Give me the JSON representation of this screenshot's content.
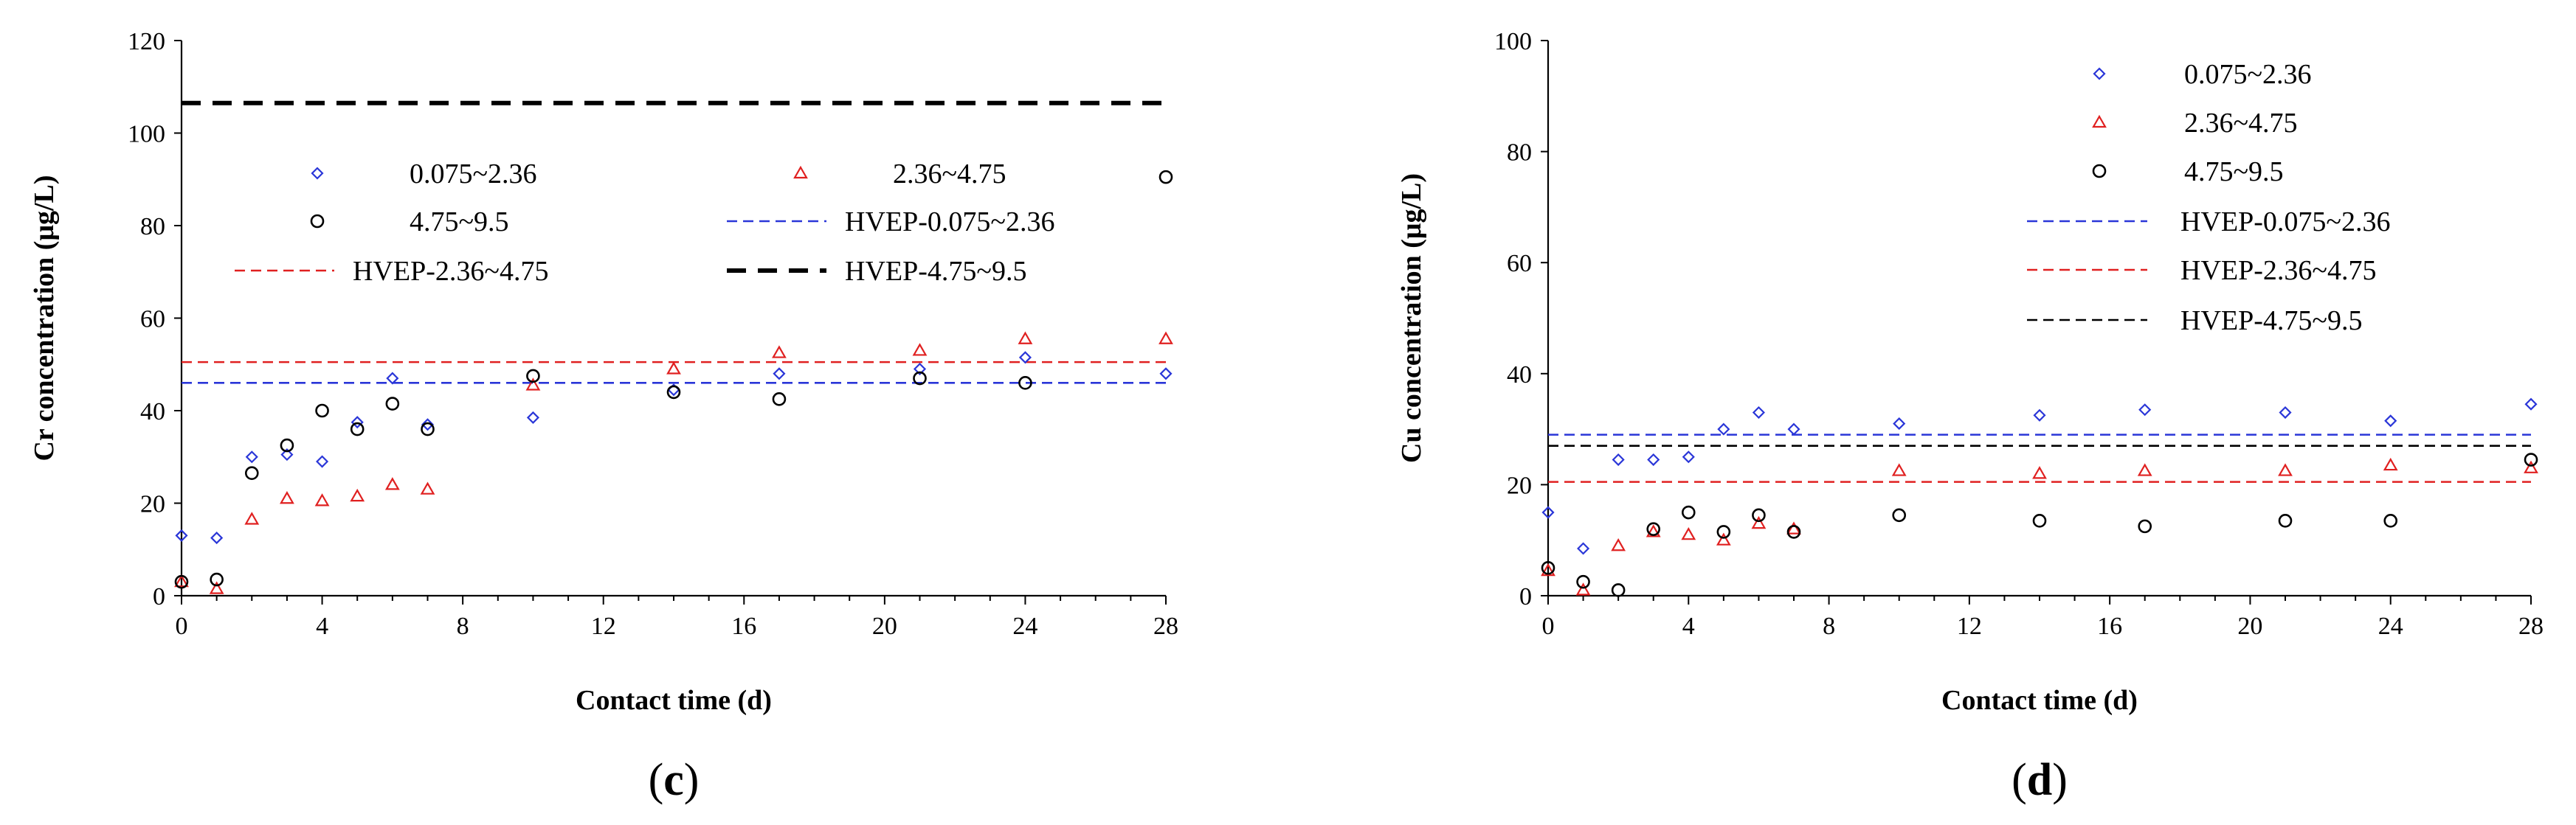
{
  "chart_data": [
    {
      "type": "scatter",
      "panel_label": {
        "open": "(",
        "letter": "c",
        "close": ")"
      },
      "xlabel": "Contact time (d)",
      "ylabel": "Cr concentration (μg/L)",
      "xlim": [
        0,
        28
      ],
      "ylim": [
        0,
        120
      ],
      "xticks": [
        0,
        4,
        8,
        12,
        16,
        20,
        24,
        28
      ],
      "yticks": [
        0,
        20,
        40,
        60,
        80,
        100,
        120
      ],
      "x": [
        0,
        1,
        2,
        3,
        4,
        5,
        6,
        7,
        10,
        14,
        17,
        21,
        24,
        28
      ],
      "series": [
        {
          "name": "0.075~2.36",
          "marker": "diamond",
          "color": "#2a36d8",
          "values": [
            13,
            12.5,
            30,
            30.5,
            29,
            37.5,
            47,
            37,
            38.5,
            44.5,
            48,
            49,
            51.5,
            48
          ]
        },
        {
          "name": "2.36~4.75",
          "marker": "triangle",
          "color": "#e02020",
          "values": [
            3,
            1.5,
            16.5,
            21,
            20.5,
            21.5,
            24,
            23,
            45.5,
            49,
            52.5,
            53,
            55.5,
            55.5
          ]
        },
        {
          "name": "4.75~9.5",
          "marker": "circle",
          "color": "#000000",
          "values": [
            3,
            3.5,
            26.5,
            32.5,
            40,
            36,
            41.5,
            36,
            47.5,
            44,
            42.5,
            47,
            46,
            90.5
          ]
        }
      ],
      "reference_lines": [
        {
          "name": "HVEP-0.075~2.36",
          "value": 46,
          "color": "#2a36d8",
          "style": "dashed"
        },
        {
          "name": "HVEP-2.36~4.75",
          "value": 50.5,
          "color": "#e02020",
          "style": "dashed"
        },
        {
          "name": "HVEP-4.75~9.5",
          "value": 106.5,
          "color": "#000000",
          "style": "dashed-bold"
        }
      ],
      "legend_order": [
        {
          "kind": "series",
          "index": 0
        },
        {
          "kind": "series",
          "index": 1
        },
        {
          "kind": "series",
          "index": 2
        },
        {
          "kind": "line",
          "index": 0
        },
        {
          "kind": "line",
          "index": 1
        },
        {
          "kind": "line",
          "index": 2
        }
      ],
      "legend_position": "upper-center"
    },
    {
      "type": "scatter",
      "panel_label": {
        "open": "(",
        "letter": "d",
        "close": ")"
      },
      "xlabel": "Contact time (d)",
      "ylabel": "Cu concentration (μg/L)",
      "xlim": [
        0,
        28
      ],
      "ylim": [
        0,
        100
      ],
      "xticks": [
        0,
        4,
        8,
        12,
        16,
        20,
        24,
        28
      ],
      "yticks": [
        0,
        20,
        40,
        60,
        80,
        100
      ],
      "x": [
        0,
        1,
        2,
        3,
        4,
        5,
        6,
        7,
        10,
        14,
        17,
        21,
        24,
        28
      ],
      "series": [
        {
          "name": "0.075~2.36",
          "marker": "diamond",
          "color": "#2a36d8",
          "values": [
            15,
            8.5,
            24.5,
            24.5,
            25,
            30,
            33,
            30,
            31,
            32.5,
            33.5,
            33,
            31.5,
            34.5
          ]
        },
        {
          "name": "2.36~4.75",
          "marker": "triangle",
          "color": "#e02020",
          "values": [
            4.5,
            1,
            9,
            11.5,
            11,
            10,
            13,
            12,
            22.5,
            22,
            22.5,
            22.5,
            23.5,
            23
          ]
        },
        {
          "name": "4.75~9.5",
          "marker": "circle",
          "color": "#000000",
          "values": [
            5,
            2.5,
            1,
            12,
            15,
            11.5,
            14.5,
            11.5,
            14.5,
            13.5,
            12.5,
            13.5,
            13.5,
            24.5
          ]
        }
      ],
      "reference_lines": [
        {
          "name": "HVEP-0.075~2.36",
          "value": 29,
          "color": "#2a36d8",
          "style": "dashed"
        },
        {
          "name": "HVEP-2.36~4.75",
          "value": 20.5,
          "color": "#e02020",
          "style": "dashed"
        },
        {
          "name": "HVEP-4.75~9.5",
          "value": 27,
          "color": "#000000",
          "style": "dashed"
        }
      ],
      "legend_order": [
        {
          "kind": "series",
          "index": 0
        },
        {
          "kind": "series",
          "index": 1
        },
        {
          "kind": "series",
          "index": 2
        },
        {
          "kind": "line",
          "index": 0
        },
        {
          "kind": "line",
          "index": 1
        },
        {
          "kind": "line",
          "index": 2
        }
      ],
      "legend_position": "upper-center"
    }
  ]
}
